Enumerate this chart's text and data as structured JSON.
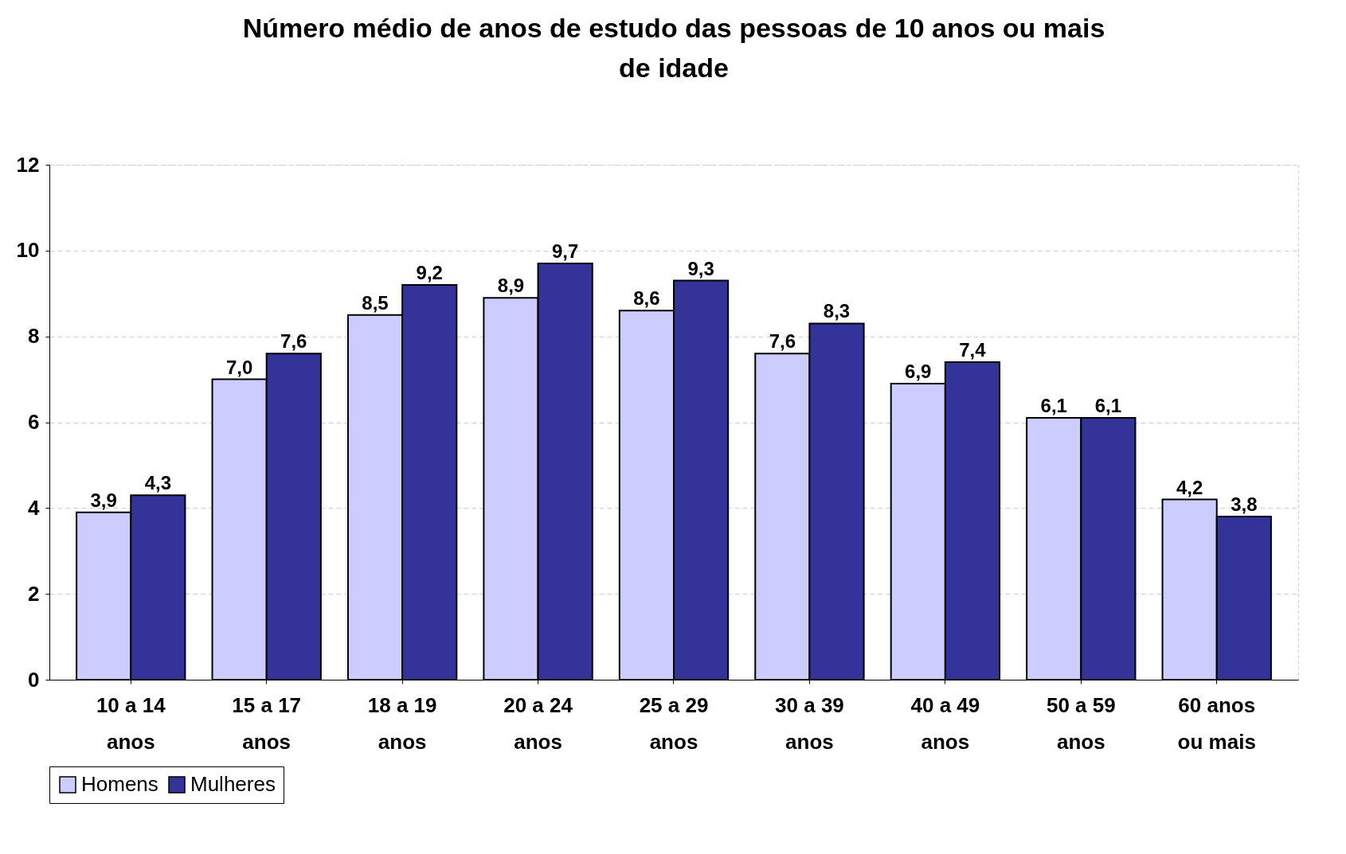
{
  "chart_data": {
    "type": "bar",
    "title": "Número médio de anos de estudo das pessoas de 10 anos ou mais de idade",
    "categories": [
      "10 a 14 anos",
      "15 a 17 anos",
      "18 a 19 anos",
      "20 a 24 anos",
      "25 a 29 anos",
      "30 a 39 anos",
      "40 a 49 anos",
      "50 a 59 anos",
      "60 anos ou mais"
    ],
    "series": [
      {
        "name": "Homens",
        "color": "#ccccff",
        "values": [
          3.9,
          7.0,
          8.5,
          8.9,
          8.6,
          7.6,
          6.9,
          6.1,
          4.2
        ],
        "value_labels": [
          "3,9",
          "7,0",
          "8,5",
          "8,9",
          "8,6",
          "7,6",
          "6,9",
          "6,1",
          "4,2"
        ]
      },
      {
        "name": "Mulheres",
        "color": "#333399",
        "values": [
          4.3,
          7.6,
          9.2,
          9.7,
          9.3,
          8.3,
          7.4,
          6.1,
          3.8
        ],
        "value_labels": [
          "4,3",
          "7,6",
          "9,2",
          "9,7",
          "9,3",
          "8,3",
          "7,4",
          "6,1",
          "3,8"
        ]
      }
    ],
    "ylim": [
      0,
      12
    ],
    "yticks": [
      0,
      2,
      4,
      6,
      8,
      10,
      12
    ],
    "grid": "y",
    "legend": "bottom"
  }
}
